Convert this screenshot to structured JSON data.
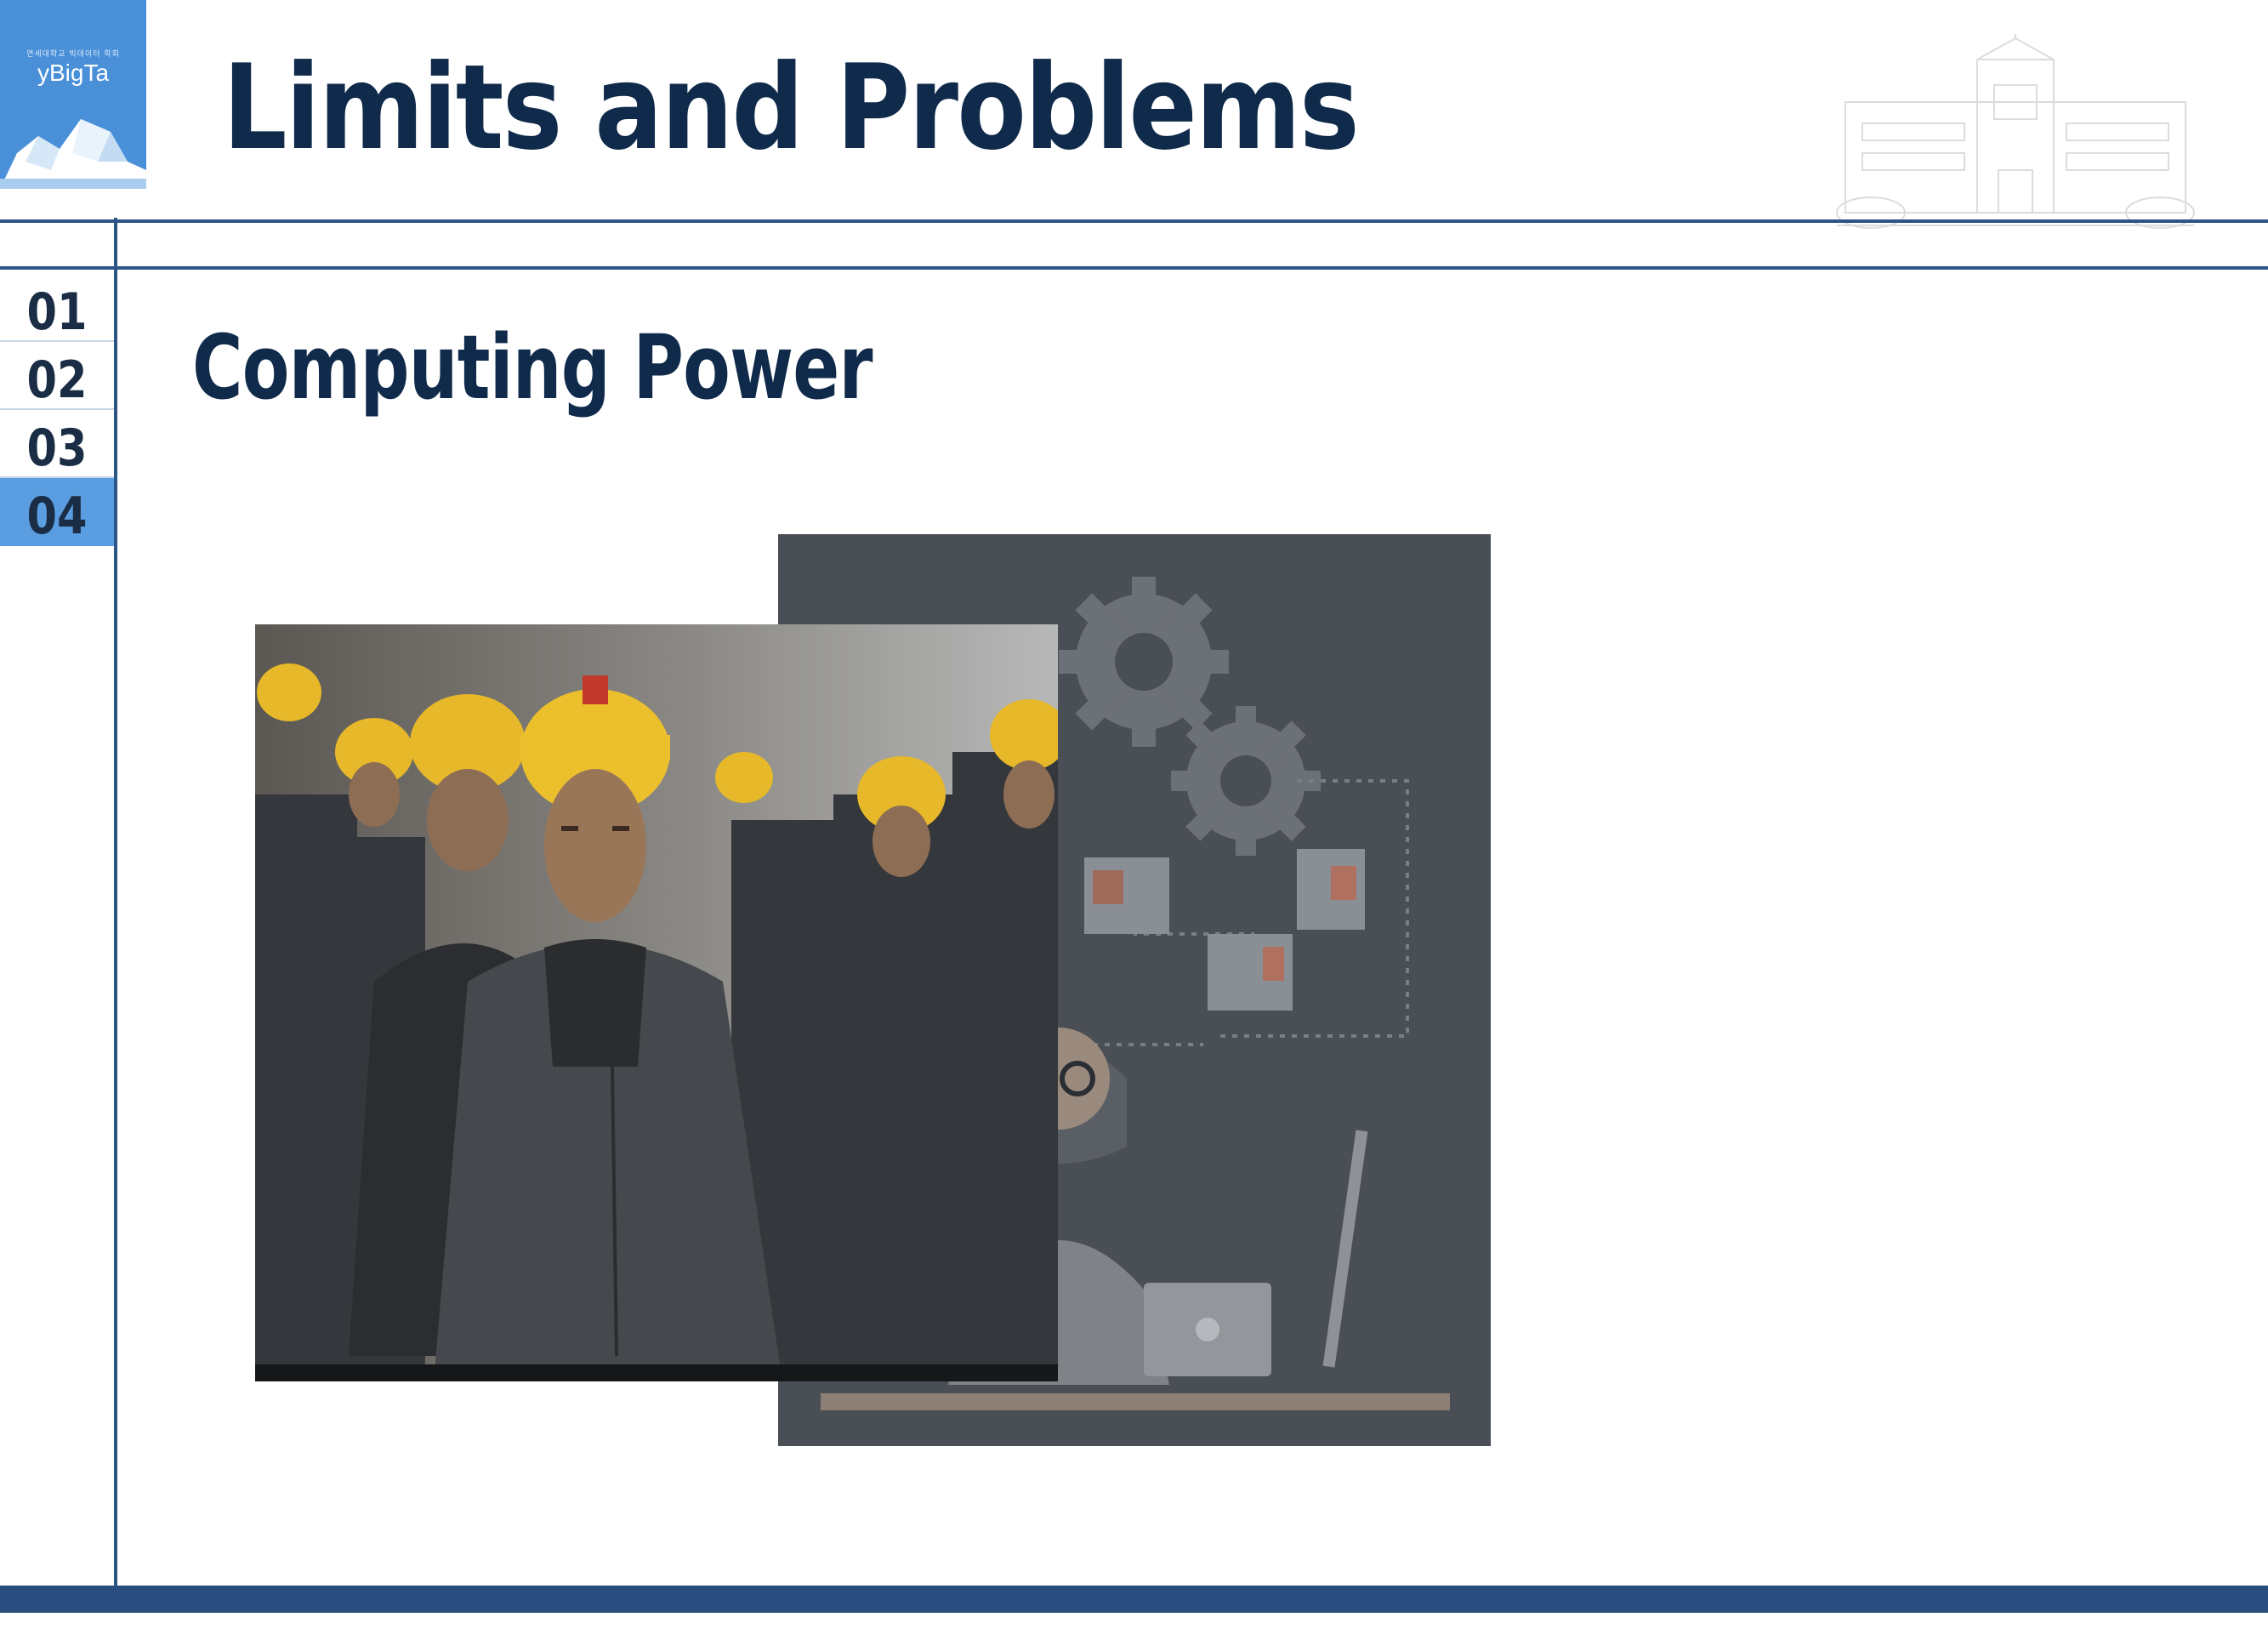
{
  "logo": {
    "tagline": "연세대학교 빅데이터 학회",
    "brand": "yBigTa"
  },
  "header": {
    "title": "Limits and Problems"
  },
  "nav": {
    "items": [
      {
        "label": "01",
        "active": false
      },
      {
        "label": "02",
        "active": false
      },
      {
        "label": "03",
        "active": false
      },
      {
        "label": "04",
        "active": true
      }
    ]
  },
  "content": {
    "subtitle": "Computing Power"
  },
  "colors": {
    "navy": "#0f2a4a",
    "rule": "#2a5585",
    "active_nav": "#5a9de0",
    "logo_bg": "#4a90d9"
  }
}
